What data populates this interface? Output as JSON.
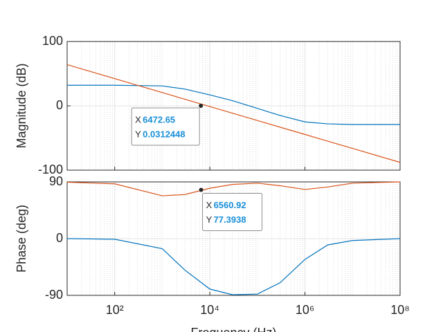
{
  "chart_data": [
    {
      "type": "line",
      "ylabel": "Magnitude (dB)",
      "xscale": "log",
      "grid": true,
      "minor_grid": true,
      "xlim": [
        10,
        100000000
      ],
      "xticks": [
        100,
        10000,
        1000000,
        100000000
      ],
      "ylim": [
        -100,
        100
      ],
      "yticks": [
        -100,
        0,
        100
      ],
      "x": [
        10,
        100,
        1000,
        3000,
        10000,
        30000,
        100000,
        300000,
        1000000,
        3000000,
        10000000,
        100000000
      ],
      "series": [
        {
          "color": "#0072bd",
          "values": [
            32,
            32,
            31,
            26,
            17,
            8,
            -4,
            -15,
            -25,
            -28,
            -29,
            -29
          ]
        },
        {
          "color": "#d95319",
          "values": [
            64,
            42.3,
            20.6,
            10.2,
            -1.1,
            -11.5,
            -22.8,
            -33.2,
            -44.5,
            -54.9,
            -66.2,
            -87.9
          ]
        }
      ],
      "datatip": {
        "x_name": "X",
        "x": 6472.65,
        "y_name": "Y",
        "y": 0.0312448,
        "value_color": "#1a8fd8"
      }
    },
    {
      "type": "line",
      "ylabel": "Phase (deg)",
      "xlabel": "Frequency  (Hz)",
      "xscale": "log",
      "grid": true,
      "minor_grid": true,
      "xlim": [
        10,
        100000000
      ],
      "xticks": [
        {
          "value": 100,
          "label": "10²"
        },
        {
          "value": 10000,
          "label": "10⁴"
        },
        {
          "value": 1000000,
          "label": "10⁶"
        },
        {
          "value": 100000000,
          "label": "10⁸"
        }
      ],
      "ylim": [
        -90,
        90
      ],
      "yticks": [
        -90,
        0,
        90
      ],
      "x": [
        10,
        100,
        1000,
        3000,
        10000,
        30000,
        100000,
        300000,
        1000000,
        3000000,
        10000000,
        100000000
      ],
      "series": [
        {
          "color": "#0072bd",
          "values": [
            0,
            -1,
            -16,
            -50,
            -80,
            -89,
            -88,
            -70,
            -33,
            -10,
            -3,
            0
          ]
        },
        {
          "color": "#d95319",
          "values": [
            89.5,
            87,
            68,
            70,
            80,
            86,
            88,
            84,
            78,
            82,
            88,
            90
          ]
        }
      ],
      "datatip": {
        "x_name": "X",
        "x": 6560.92,
        "y_name": "Y",
        "y": 77.3938,
        "value_color": "#1a8fd8"
      }
    }
  ]
}
